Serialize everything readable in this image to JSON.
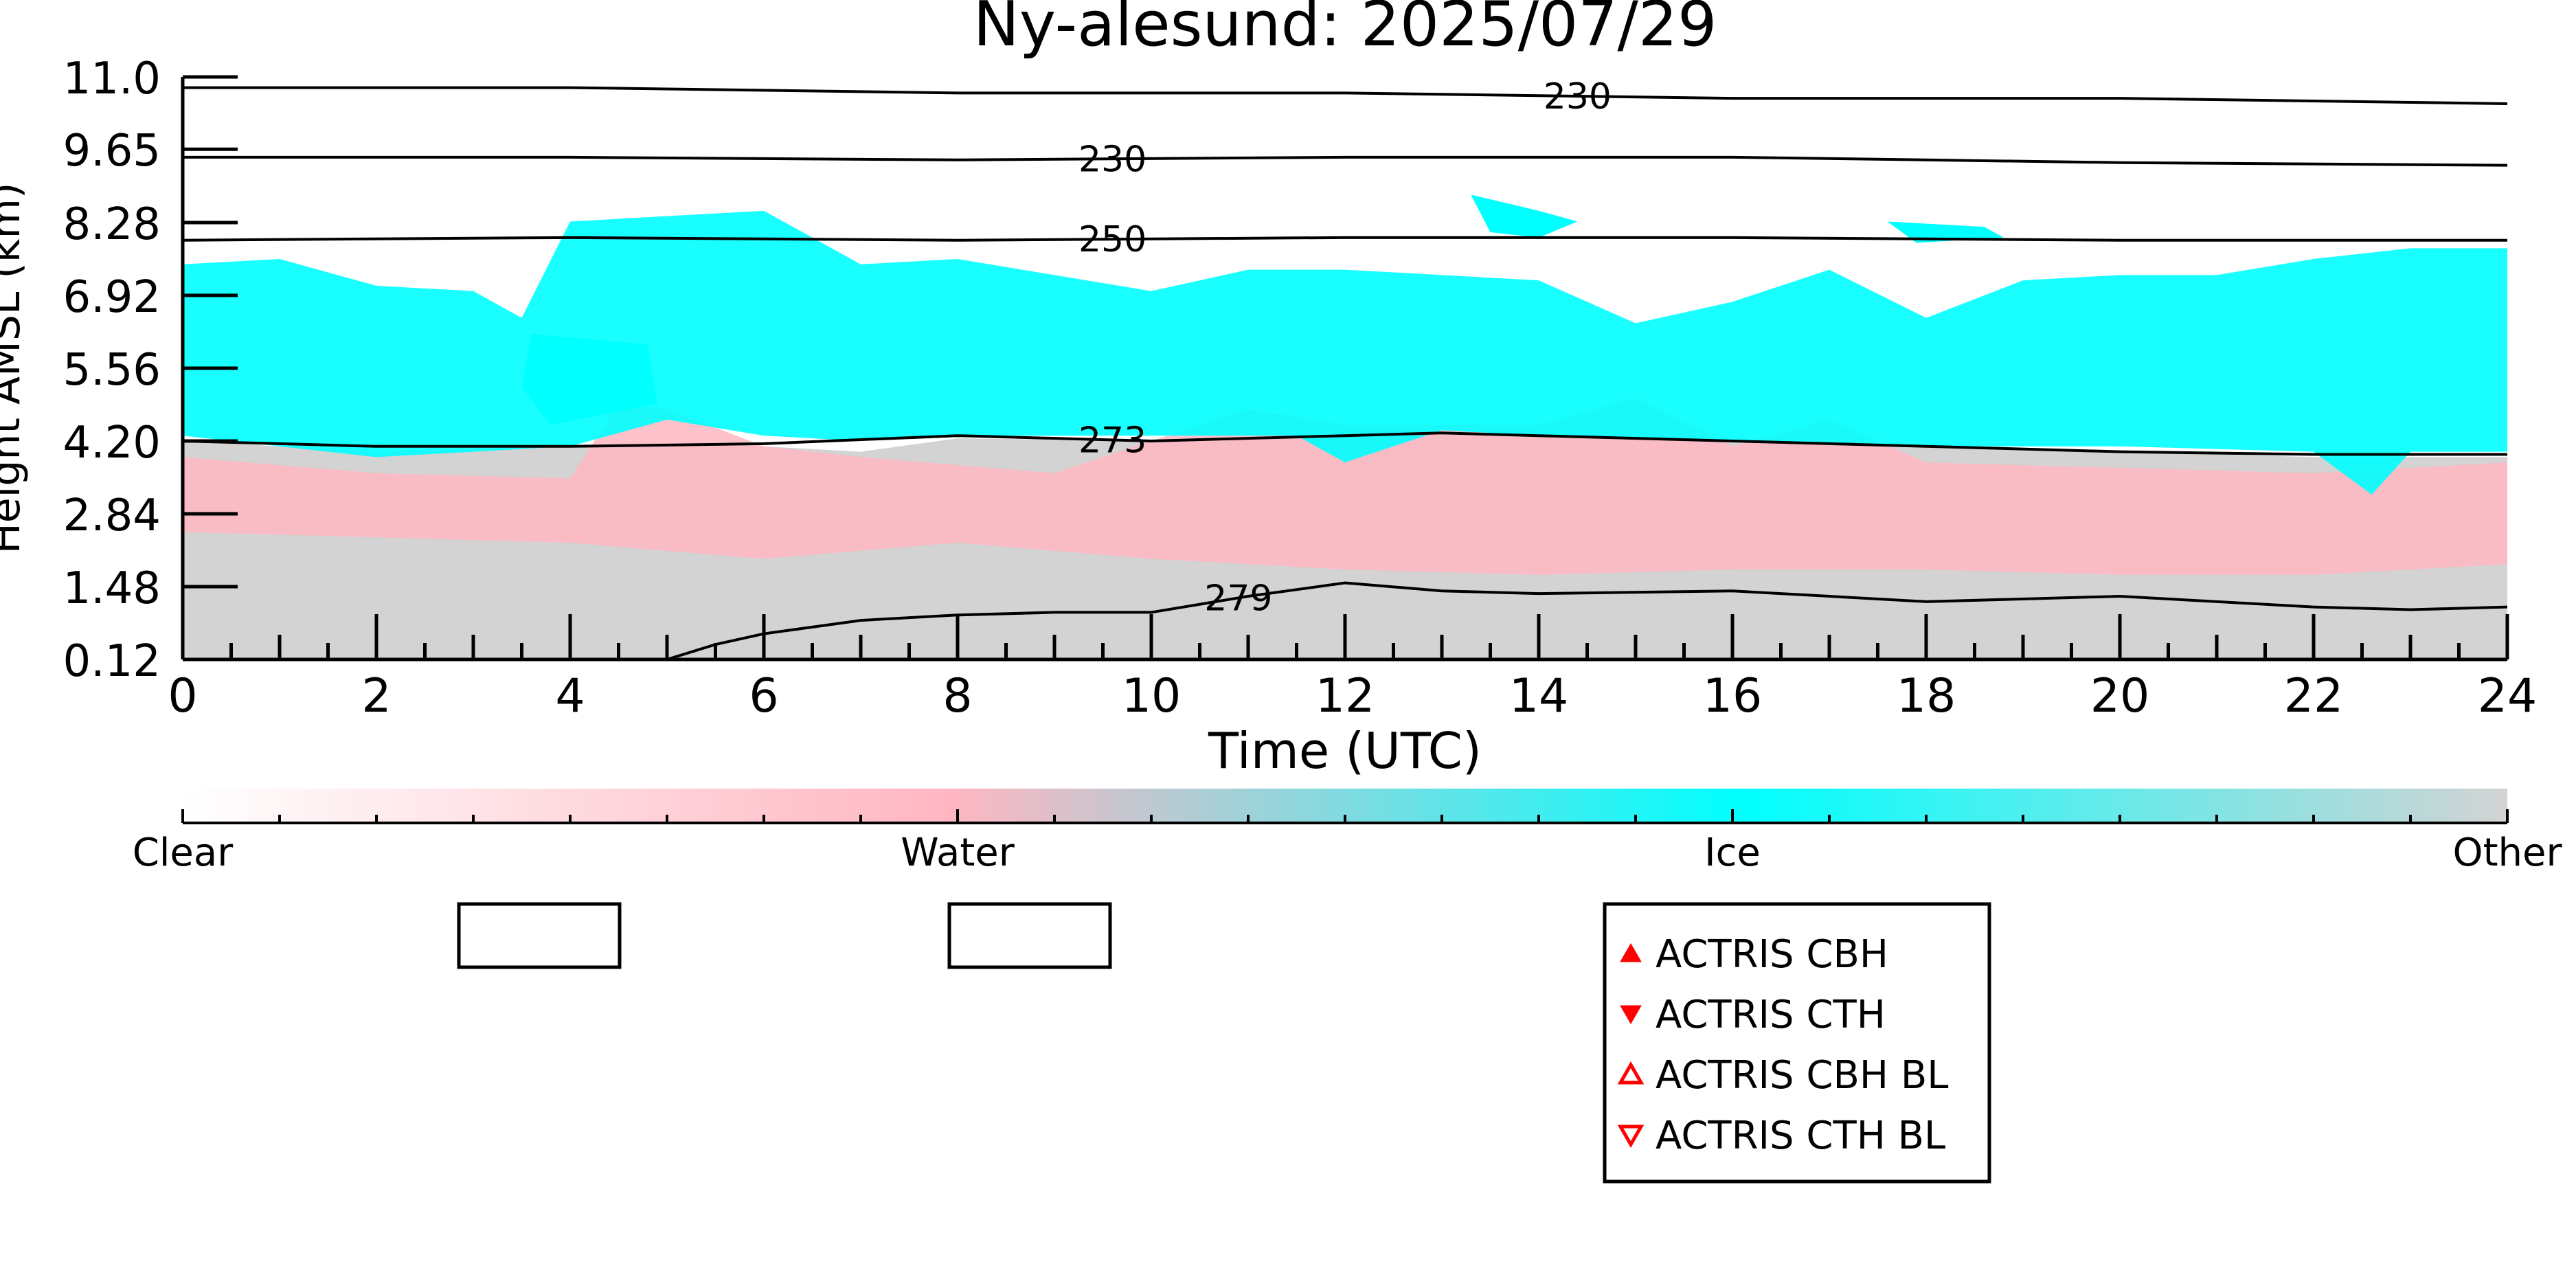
{
  "chart_data": {
    "type": "heatmap",
    "title": "Ny-alesund: 2025/07/29",
    "xlabel": "Time (UTC)",
    "ylabel": "Height AMSL (km)",
    "xlim": [
      0,
      24
    ],
    "ylim": [
      0.12,
      11.0
    ],
    "x_ticks": [
      "0",
      "2",
      "4",
      "6",
      "8",
      "10",
      "12",
      "14",
      "16",
      "18",
      "20",
      "22",
      "24"
    ],
    "y_ticks": [
      "0.12",
      "1.48",
      "2.84",
      "4.20",
      "5.56",
      "6.92",
      "8.28",
      "9.65",
      "11.0"
    ],
    "classes": [
      {
        "name": "Clear",
        "color": "#ffffff"
      },
      {
        "name": "Water",
        "color": "#ffb6c1"
      },
      {
        "name": "Ice",
        "color": "#00ffff"
      },
      {
        "name": "Other",
        "color": "#d3d3d3"
      }
    ],
    "regions": {
      "other": {
        "class": "Other",
        "bottom": [
          [
            0,
            0.12
          ],
          [
            24,
            0.12
          ]
        ],
        "top": [
          [
            0,
            4.2
          ],
          [
            2,
            4.0
          ],
          [
            4,
            4.1
          ],
          [
            6,
            4.1
          ],
          [
            7,
            4.0
          ],
          [
            8,
            4.25
          ],
          [
            10,
            4.2
          ],
          [
            12,
            4.3
          ],
          [
            13,
            4.35
          ],
          [
            14,
            4.3
          ],
          [
            16,
            4.2
          ],
          [
            18,
            4.1
          ],
          [
            20,
            4.0
          ],
          [
            22,
            3.9
          ],
          [
            24,
            3.9
          ]
        ]
      },
      "water": {
        "class": "Water",
        "bottom": [
          [
            0,
            2.5
          ],
          [
            2,
            2.4
          ],
          [
            4,
            2.3
          ],
          [
            6,
            2.0
          ],
          [
            8,
            2.3
          ],
          [
            10,
            2.0
          ],
          [
            12,
            1.8
          ],
          [
            14,
            1.7
          ],
          [
            16,
            1.8
          ],
          [
            18,
            1.8
          ],
          [
            20,
            1.7
          ],
          [
            22,
            1.7
          ],
          [
            24,
            1.9
          ]
        ],
        "top": [
          [
            0,
            3.9
          ],
          [
            2,
            3.6
          ],
          [
            4,
            3.5
          ],
          [
            4.5,
            4.9
          ],
          [
            5,
            4.8
          ],
          [
            6,
            4.1
          ],
          [
            7,
            3.9
          ],
          [
            9,
            3.6
          ],
          [
            10,
            4.2
          ],
          [
            11,
            4.8
          ],
          [
            12,
            4.5
          ],
          [
            14,
            4.5
          ],
          [
            15,
            5.0
          ],
          [
            16,
            4.1
          ],
          [
            17,
            4.6
          ],
          [
            18,
            3.8
          ],
          [
            20,
            3.7
          ],
          [
            22,
            3.6
          ],
          [
            24,
            3.8
          ]
        ]
      },
      "ice": {
        "class": "Ice",
        "bottom": [
          [
            0,
            4.3
          ],
          [
            1,
            4.1
          ],
          [
            2,
            3.9
          ],
          [
            3,
            4.0
          ],
          [
            4,
            4.1
          ],
          [
            5,
            4.6
          ],
          [
            6,
            4.3
          ],
          [
            7,
            4.2
          ],
          [
            8,
            4.3
          ],
          [
            10,
            4.3
          ],
          [
            11.5,
            4.3
          ],
          [
            12,
            3.8
          ],
          [
            13,
            4.4
          ],
          [
            14,
            4.3
          ],
          [
            16,
            4.2
          ],
          [
            18,
            4.1
          ],
          [
            20,
            4.1
          ],
          [
            22,
            4.0
          ],
          [
            22.6,
            3.2
          ],
          [
            23,
            4.0
          ],
          [
            24,
            4.0
          ]
        ],
        "top": [
          [
            0,
            7.5
          ],
          [
            1,
            7.6
          ],
          [
            2,
            7.1
          ],
          [
            3,
            7.0
          ],
          [
            3.5,
            6.5
          ],
          [
            4,
            8.3
          ],
          [
            5,
            8.4
          ],
          [
            6,
            8.5
          ],
          [
            7,
            7.5
          ],
          [
            8,
            7.6
          ],
          [
            9,
            7.3
          ],
          [
            10,
            7.0
          ],
          [
            11,
            7.4
          ],
          [
            12,
            7.4
          ],
          [
            13,
            7.3
          ],
          [
            14,
            7.2
          ],
          [
            15,
            6.4
          ],
          [
            16,
            6.8
          ],
          [
            17,
            7.4
          ],
          [
            18,
            6.5
          ],
          [
            19,
            7.2
          ],
          [
            20,
            7.3
          ],
          [
            21,
            7.3
          ],
          [
            22,
            7.6
          ],
          [
            23,
            7.8
          ],
          [
            24,
            7.8
          ]
        ]
      }
    },
    "ice_patches": [
      {
        "class": "Ice",
        "points": [
          [
            13.3,
            8.8
          ],
          [
            14.0,
            8.5
          ],
          [
            14.4,
            8.3
          ],
          [
            14.0,
            8.0
          ],
          [
            13.5,
            8.1
          ]
        ]
      },
      {
        "class": "Ice",
        "points": [
          [
            17.6,
            8.3
          ],
          [
            18.6,
            8.2
          ],
          [
            18.8,
            8.0
          ],
          [
            17.9,
            7.9
          ]
        ]
      },
      {
        "class": "Ice",
        "points": [
          [
            3.6,
            6.2
          ],
          [
            4.8,
            6.0
          ],
          [
            4.9,
            4.9
          ],
          [
            3.8,
            4.5
          ],
          [
            3.5,
            5.2
          ]
        ]
      }
    ],
    "contours": [
      {
        "label": "230",
        "x": [
          0,
          4,
          8,
          12,
          16,
          20,
          24
        ],
        "y": [
          10.8,
          10.8,
          10.7,
          10.7,
          10.6,
          10.6,
          10.5
        ],
        "label_x": 14.4
      },
      {
        "label": "230",
        "x": [
          0,
          4,
          8,
          12,
          16,
          20,
          24
        ],
        "y": [
          9.5,
          9.5,
          9.45,
          9.5,
          9.5,
          9.4,
          9.35
        ],
        "label_x": 9.6
      },
      {
        "label": "250",
        "x": [
          0,
          4,
          8,
          12,
          16,
          20,
          24
        ],
        "y": [
          7.95,
          8.0,
          7.95,
          8.0,
          8.0,
          7.95,
          7.95
        ],
        "label_x": 9.6
      },
      {
        "label": "273",
        "x": [
          0,
          2,
          4,
          6,
          8,
          10,
          12,
          13,
          14,
          16,
          18,
          20,
          22,
          24
        ],
        "y": [
          4.2,
          4.1,
          4.1,
          4.15,
          4.3,
          4.2,
          4.3,
          4.35,
          4.3,
          4.2,
          4.1,
          4.0,
          3.95,
          3.95
        ],
        "label_x": 9.6
      },
      {
        "label": "279",
        "x": [
          5,
          5.5,
          6,
          7,
          8,
          9,
          10,
          11,
          12,
          13,
          14,
          16,
          18,
          20,
          22,
          23,
          24
        ],
        "y": [
          0.12,
          0.4,
          0.6,
          0.85,
          0.95,
          1.0,
          1.0,
          1.3,
          1.55,
          1.4,
          1.35,
          1.4,
          1.2,
          1.3,
          1.1,
          1.05,
          1.1
        ],
        "label_x": 10.9
      }
    ],
    "colorbar": {
      "labels": [
        "Clear",
        "Water",
        "Ice",
        "Other"
      ]
    },
    "legend": {
      "placement": "bottom-center",
      "entries": [
        {
          "name": "ACTRIS CBH",
          "marker": "triangle-up-filled",
          "color": "#ff0000"
        },
        {
          "name": "ACTRIS CTH",
          "marker": "triangle-down-filled",
          "color": "#ff0000"
        },
        {
          "name": "ACTRIS CBH BL",
          "marker": "triangle-up-open",
          "color": "#ff0000"
        },
        {
          "name": "ACTRIS CTH BL",
          "marker": "triangle-down-open",
          "color": "#ff0000"
        }
      ]
    },
    "empty_boxes": 2,
    "grid": false
  }
}
